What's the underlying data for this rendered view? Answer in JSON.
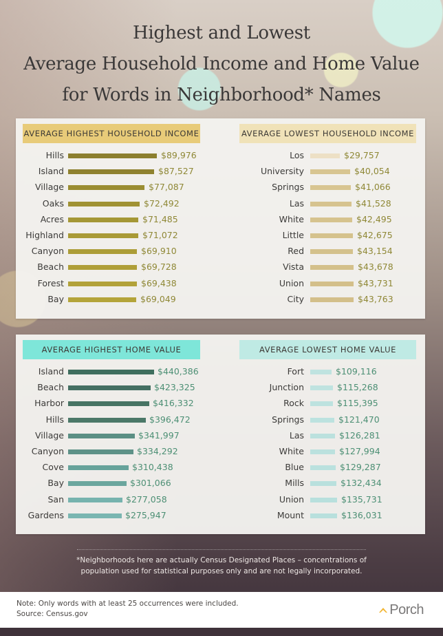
{
  "title": {
    "line1": "Highest and Lowest",
    "line2": "Average Household Income and Home Value",
    "line3": "for Words in Neighborhood* Names"
  },
  "colors": {
    "income_header_high": "#e8cb79",
    "income_header_low": "#f0e2b8",
    "home_header_high": "#7ee6d9",
    "home_header_low": "#bfeae4",
    "income_value_text": "#8f8836",
    "home_value_text": "#4c8f74"
  },
  "chart_data": [
    {
      "type": "bar",
      "orientation": "horizontal",
      "title": "AVERAGE HIGHEST HOUSEHOLD INCOME",
      "categories": [
        "Hills",
        "Island",
        "Village",
        "Oaks",
        "Acres",
        "Highland",
        "Canyon",
        "Beach",
        "Forest",
        "Bay"
      ],
      "values": [
        89976,
        87527,
        77087,
        72492,
        71485,
        71072,
        69910,
        69728,
        69438,
        69049
      ],
      "labels": [
        "$89,976",
        "$87,527",
        "$77,087",
        "$72,492",
        "$71,485",
        "$71,072",
        "$69,910",
        "$69,728",
        "$69,438",
        "$69,049"
      ],
      "bar_colors": [
        "#8c7f2f",
        "#8f822f",
        "#9a8d32",
        "#a09234",
        "#a59735",
        "#a99a36",
        "#ac9d37",
        "#af9f38",
        "#b2a239",
        "#b4a43a"
      ],
      "value_color": "#8f8836",
      "grid": false,
      "legend": false
    },
    {
      "type": "bar",
      "orientation": "horizontal",
      "title": "AVERAGE LOWEST HOUSEHOLD INCOME",
      "categories": [
        "Los",
        "University",
        "Springs",
        "Las",
        "White",
        "Little",
        "Red",
        "Vista",
        "Union",
        "City"
      ],
      "values": [
        29757,
        40054,
        41066,
        41528,
        42495,
        42675,
        43154,
        43678,
        43731,
        43763
      ],
      "labels": [
        "$29,757",
        "$40,054",
        "$41,066",
        "$41,528",
        "$42,495",
        "$42,675",
        "$43,154",
        "$43,678",
        "$43,731",
        "$43,763"
      ],
      "bar_colors": [
        "#ede0c5",
        "#d8c591",
        "#d8c591",
        "#d6c38f",
        "#d6c38e",
        "#d5c28d",
        "#d4c18c",
        "#d4c08b",
        "#d3bf8a",
        "#d3bf8a"
      ],
      "value_color": "#8f8836",
      "grid": false,
      "legend": false
    },
    {
      "type": "bar",
      "orientation": "horizontal",
      "title": "AVERAGE HIGHEST HOME VALUE",
      "categories": [
        "Island",
        "Beach",
        "Harbor",
        "Hills",
        "Village",
        "Canyon",
        "Cove",
        "Bay",
        "San",
        "Gardens"
      ],
      "values": [
        440386,
        423325,
        416332,
        396472,
        341997,
        334292,
        310438,
        301066,
        277058,
        275947
      ],
      "labels": [
        "$440,386",
        "$423,325",
        "$416,332",
        "$396,472",
        "$341,997",
        "$334,292",
        "$310,438",
        "$301,066",
        "$277,058",
        "$275,947"
      ],
      "bar_colors": [
        "#3f6e5e",
        "#446f62",
        "#477464",
        "#4b7868",
        "#5b8f84",
        "#5e9288",
        "#67a39b",
        "#6ba69e",
        "#76b3ae",
        "#7ab6b1"
      ],
      "value_color": "#4c8f74",
      "grid": false,
      "legend": false
    },
    {
      "type": "bar",
      "orientation": "horizontal",
      "title": "AVERAGE LOWEST HOME VALUE",
      "categories": [
        "Fort",
        "Junction",
        "Rock",
        "Springs",
        "Las",
        "White",
        "Blue",
        "Mills",
        "Union",
        "Mount"
      ],
      "values": [
        109116,
        115268,
        115395,
        121470,
        126281,
        127994,
        129287,
        132434,
        135731,
        136031
      ],
      "labels": [
        "$109,116",
        "$115,268",
        "$115,395",
        "$121,470",
        "$126,281",
        "$127,994",
        "$129,287",
        "$132,434",
        "$135,731",
        "$136,031"
      ],
      "bar_colors": [
        "#bfe3e0",
        "#bfe3e0",
        "#bde2df",
        "#bce2df",
        "#bbe1de",
        "#bbe1de",
        "#bae1de",
        "#b9e0dd",
        "#b8e0dd",
        "#b8e0dd"
      ],
      "value_color": "#4c8f74",
      "grid": false,
      "legend": false
    }
  ],
  "footnote": {
    "line1": "*Neighborhoods here are actually Census Designated Places – concentrations of",
    "line2": "population used for statistical purposes only and are not legally incorporated."
  },
  "notes": {
    "note": "Note: Only words with at least 25 occurrences were included.",
    "source": "Source: Census.gov"
  },
  "brand": {
    "name": "Porch",
    "icon": "chevron-up-icon",
    "icon_color": "#f2b531"
  }
}
